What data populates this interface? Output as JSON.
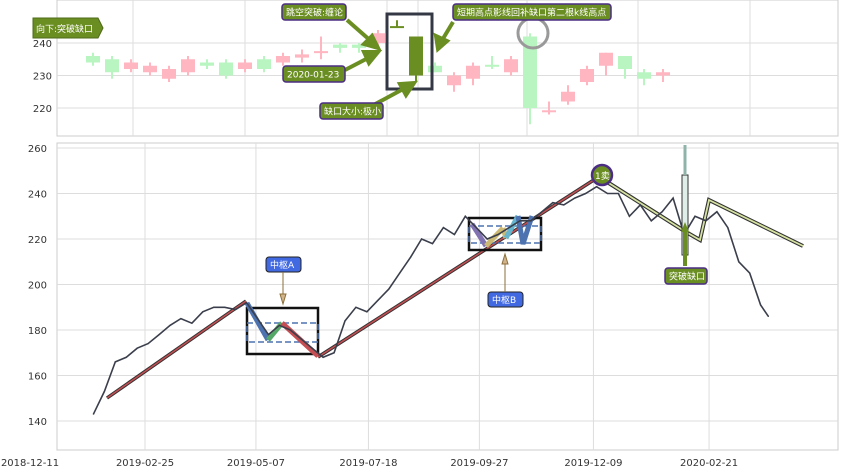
{
  "chart_data": [
    {
      "type": "candlestick",
      "panel": "top",
      "y_ticks": [
        "220",
        "230",
        "240"
      ],
      "ylim": [
        211,
        253
      ],
      "grid": true,
      "colors": {
        "up": "#ffb6c1",
        "down": "#b9f5c0",
        "highlight": "#6b8e23"
      },
      "candles": [
        {
          "o": 236,
          "c": 234,
          "h": 237,
          "l": 233,
          "dir": "down"
        },
        {
          "o": 235,
          "c": 231,
          "h": 236,
          "l": 229,
          "dir": "down"
        },
        {
          "o": 232,
          "c": 234,
          "h": 235,
          "l": 231,
          "dir": "up"
        },
        {
          "o": 231,
          "c": 233,
          "h": 234,
          "l": 230,
          "dir": "up"
        },
        {
          "o": 229,
          "c": 232,
          "h": 233,
          "l": 228,
          "dir": "up"
        },
        {
          "o": 231,
          "c": 235,
          "h": 236,
          "l": 230,
          "dir": "up"
        },
        {
          "o": 234,
          "c": 233,
          "h": 235,
          "l": 232,
          "dir": "down"
        },
        {
          "o": 234,
          "c": 230,
          "h": 235,
          "l": 229,
          "dir": "down"
        },
        {
          "o": 232,
          "c": 234,
          "h": 235,
          "l": 231,
          "dir": "up"
        },
        {
          "o": 235,
          "c": 232,
          "h": 236,
          "l": 231,
          "dir": "down"
        },
        {
          "o": 234,
          "c": 236,
          "h": 237,
          "l": 233,
          "dir": "up"
        },
        {
          "o": 235.5,
          "c": 236.5,
          "h": 238,
          "l": 234,
          "dir": "up"
        },
        {
          "o": 237,
          "c": 237.5,
          "h": 242,
          "l": 235,
          "dir": "up"
        },
        {
          "o": 239.5,
          "c": 238.5,
          "h": 240,
          "l": 237,
          "dir": "down"
        },
        {
          "o": 239.5,
          "c": 238.5,
          "h": 240,
          "l": 237,
          "dir": "down"
        },
        {
          "o": 240,
          "c": 243,
          "h": 244,
          "l": 238,
          "dir": "up"
        },
        {
          "o": 245,
          "c": 245.2,
          "h": 247,
          "l": 245,
          "dir": "highlight"
        },
        {
          "o": 242,
          "c": 230,
          "h": 242,
          "l": 228,
          "dir": "highlight"
        },
        {
          "o": 233,
          "c": 231,
          "h": 234,
          "l": 231,
          "dir": "down"
        },
        {
          "o": 227,
          "c": 230,
          "h": 231,
          "l": 225,
          "dir": "up"
        },
        {
          "o": 229,
          "c": 233,
          "h": 234,
          "l": 227,
          "dir": "up"
        },
        {
          "o": 233,
          "c": 233.3,
          "h": 236,
          "l": 232,
          "dir": "down"
        },
        {
          "o": 231,
          "c": 235,
          "h": 236,
          "l": 230,
          "dir": "up"
        },
        {
          "o": 242,
          "c": 220,
          "h": 243,
          "l": 215,
          "dir": "down"
        },
        {
          "o": 219,
          "c": 219.3,
          "h": 222,
          "l": 218,
          "dir": "up"
        },
        {
          "o": 222,
          "c": 225,
          "h": 227,
          "l": 221,
          "dir": "up"
        },
        {
          "o": 228,
          "c": 232,
          "h": 233,
          "l": 227,
          "dir": "up"
        },
        {
          "o": 233,
          "c": 237,
          "h": 237,
          "l": 230,
          "dir": "up"
        },
        {
          "o": 236,
          "c": 232,
          "h": 236,
          "l": 229,
          "dir": "down"
        },
        {
          "o": 231,
          "c": 229,
          "h": 232,
          "l": 227,
          "dir": "down"
        },
        {
          "o": 230,
          "c": 231,
          "h": 232,
          "l": 228,
          "dir": "up"
        }
      ],
      "annotations": {
        "gap_direction": "向下:突破缺口",
        "gap_type": "跳空突破:缠论",
        "gap_date": "2020-01-23",
        "gap_size": "缺口大小:极小",
        "gap_fill": "短期高点影线回补缺口第二根k线高点"
      }
    },
    {
      "type": "line",
      "panel": "bottom",
      "x_ticks": [
        "2018-12-11",
        "2019-02-25",
        "2019-05-07",
        "2019-07-18",
        "2019-09-27",
        "2019-12-09",
        "2020-02-21"
      ],
      "y_ticks": [
        "140",
        "160",
        "180",
        "200",
        "220",
        "240",
        "260"
      ],
      "ylim": [
        127,
        261
      ],
      "grid": true,
      "line_color": "#3b3f4c",
      "series": [
        {
          "points": [
            [
              "2019-01-23",
              143
            ],
            [
              "2019-01-30",
              153
            ],
            [
              "2019-02-06",
              166
            ],
            [
              "2019-02-13",
              168
            ],
            [
              "2019-02-20",
              172
            ],
            [
              "2019-02-27",
              174
            ],
            [
              "2019-03-06",
              178
            ],
            [
              "2019-03-13",
              182
            ],
            [
              "2019-03-20",
              185
            ],
            [
              "2019-03-27",
              183
            ],
            [
              "2019-04-03",
              188
            ],
            [
              "2019-04-10",
              190
            ],
            [
              "2019-04-17",
              190
            ],
            [
              "2019-04-24",
              189
            ],
            [
              "2019-05-01",
              192
            ],
            [
              "2019-05-08",
              185
            ],
            [
              "2019-05-15",
              178
            ],
            [
              "2019-05-22",
              182
            ],
            [
              "2019-05-29",
              180
            ],
            [
              "2019-06-05",
              176
            ],
            [
              "2019-06-12",
              172
            ],
            [
              "2019-06-19",
              168
            ],
            [
              "2019-06-26",
              170
            ],
            [
              "2019-07-03",
              184
            ],
            [
              "2019-07-10",
              190
            ],
            [
              "2019-07-17",
              188
            ],
            [
              "2019-07-24",
              193
            ],
            [
              "2019-07-31",
              198
            ],
            [
              "2019-08-07",
              205
            ],
            [
              "2019-08-14",
              212
            ],
            [
              "2019-08-21",
              220
            ],
            [
              "2019-08-28",
              218
            ],
            [
              "2019-09-04",
              225
            ],
            [
              "2019-09-11",
              222
            ],
            [
              "2019-09-18",
              230
            ],
            [
              "2019-09-25",
              225
            ],
            [
              "2019-10-02",
              220
            ],
            [
              "2019-10-09",
              222
            ],
            [
              "2019-10-16",
              225
            ],
            [
              "2019-10-23",
              228
            ],
            [
              "2019-10-30",
              228
            ],
            [
              "2019-11-06",
              232
            ],
            [
              "2019-11-13",
              236
            ],
            [
              "2019-11-20",
              235
            ],
            [
              "2019-11-27",
              238
            ],
            [
              "2019-12-04",
              240
            ],
            [
              "2019-12-11",
              243
            ],
            [
              "2019-12-18",
              240
            ],
            [
              "2019-12-25",
              240
            ],
            [
              "2020-01-01",
              230
            ],
            [
              "2020-01-08",
              235
            ],
            [
              "2020-01-15",
              228
            ],
            [
              "2020-01-22",
              232
            ],
            [
              "2020-01-29",
              238
            ],
            [
              "2020-02-05",
              222
            ],
            [
              "2020-02-12",
              230
            ],
            [
              "2020-02-19",
              228
            ],
            [
              "2020-02-26",
              232
            ],
            [
              "2020-03-04",
              225
            ],
            [
              "2020-03-11",
              210
            ],
            [
              "2020-03-18",
              205
            ],
            [
              "2020-03-25",
              191
            ],
            [
              "2020-03-30",
              186
            ]
          ]
        }
      ],
      "annotations": {
        "center_a": "中枢A",
        "center_b": "中枢B",
        "sell_point": "1卖",
        "gap_label": "突破缺口"
      }
    }
  ]
}
